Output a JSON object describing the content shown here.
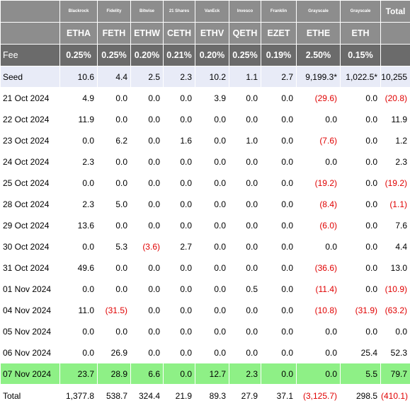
{
  "providers": [
    "Blackrock",
    "Fidelity",
    "Bitwise",
    "21 Shares",
    "VanEck",
    "Invesco",
    "Franklin",
    "Grayscale",
    "Grayscale"
  ],
  "total_header": "Total",
  "tickers": [
    "ETHA",
    "FETH",
    "ETHW",
    "CETH",
    "ETHV",
    "QETH",
    "EZET",
    "ETHE",
    "ETH"
  ],
  "fee_label": "Fee",
  "fees": [
    "0.25%",
    "0.25%",
    "0.20%",
    "0.21%",
    "0.20%",
    "0.25%",
    "0.19%",
    "2.50%",
    "0.15%"
  ],
  "rows": [
    {
      "label": "Seed",
      "values": [
        "10.6",
        "4.4",
        "2.5",
        "2.3",
        "10.2",
        "1.1",
        "2.7",
        "9,199.3*",
        "1,022.5*"
      ],
      "total": "10,255"
    },
    {
      "label": "21 Oct 2024",
      "values": [
        "4.9",
        "0.0",
        "0.0",
        "0.0",
        "3.9",
        "0.0",
        "0.0",
        "(29.6)",
        "0.0"
      ],
      "total": "(20.8)"
    },
    {
      "label": "22 Oct 2024",
      "values": [
        "11.9",
        "0.0",
        "0.0",
        "0.0",
        "0.0",
        "0.0",
        "0.0",
        "0.0",
        "0.0"
      ],
      "total": "11.9"
    },
    {
      "label": "23 Oct 2024",
      "values": [
        "0.0",
        "6.2",
        "0.0",
        "1.6",
        "0.0",
        "1.0",
        "0.0",
        "(7.6)",
        "0.0"
      ],
      "total": "1.2"
    },
    {
      "label": "24 Oct 2024",
      "values": [
        "2.3",
        "0.0",
        "0.0",
        "0.0",
        "0.0",
        "0.0",
        "0.0",
        "0.0",
        "0.0"
      ],
      "total": "2.3"
    },
    {
      "label": "25 Oct 2024",
      "values": [
        "0.0",
        "0.0",
        "0.0",
        "0.0",
        "0.0",
        "0.0",
        "0.0",
        "(19.2)",
        "0.0"
      ],
      "total": "(19.2)"
    },
    {
      "label": "28 Oct 2024",
      "values": [
        "2.3",
        "5.0",
        "0.0",
        "0.0",
        "0.0",
        "0.0",
        "0.0",
        "(8.4)",
        "0.0"
      ],
      "total": "(1.1)"
    },
    {
      "label": "29 Oct 2024",
      "values": [
        "13.6",
        "0.0",
        "0.0",
        "0.0",
        "0.0",
        "0.0",
        "0.0",
        "(6.0)",
        "0.0"
      ],
      "total": "7.6"
    },
    {
      "label": "30 Oct 2024",
      "values": [
        "0.0",
        "5.3",
        "(3.6)",
        "2.7",
        "0.0",
        "0.0",
        "0.0",
        "0.0",
        "0.0"
      ],
      "total": "4.4"
    },
    {
      "label": "31 Oct 2024",
      "values": [
        "49.6",
        "0.0",
        "0.0",
        "0.0",
        "0.0",
        "0.0",
        "0.0",
        "(36.6)",
        "0.0"
      ],
      "total": "13.0"
    },
    {
      "label": "01 Nov 2024",
      "values": [
        "0.0",
        "0.0",
        "0.0",
        "0.0",
        "0.0",
        "0.5",
        "0.0",
        "(11.4)",
        "0.0"
      ],
      "total": "(10.9)"
    },
    {
      "label": "04 Nov 2024",
      "values": [
        "11.0",
        "(31.5)",
        "0.0",
        "0.0",
        "0.0",
        "0.0",
        "0.0",
        "(10.8)",
        "(31.9)"
      ],
      "total": "(63.2)"
    },
    {
      "label": "05 Nov 2024",
      "values": [
        "0.0",
        "0.0",
        "0.0",
        "0.0",
        "0.0",
        "0.0",
        "0.0",
        "0.0",
        "0.0"
      ],
      "total": "0.0"
    },
    {
      "label": "06 Nov 2024",
      "values": [
        "0.0",
        "26.9",
        "0.0",
        "0.0",
        "0.0",
        "0.0",
        "0.0",
        "0.0",
        "25.4"
      ],
      "total": "52.3"
    },
    {
      "label": "07 Nov 2024",
      "values": [
        "23.7",
        "28.9",
        "6.6",
        "0.0",
        "12.7",
        "2.3",
        "0.0",
        "0.0",
        "5.5"
      ],
      "total": "79.7"
    }
  ],
  "total_row": {
    "label": "Total",
    "values": [
      "1,377.8",
      "538.7",
      "324.4",
      "21.9",
      "89.3",
      "27.9",
      "37.1",
      "(3,125.7)",
      "298.5"
    ],
    "total": "(410.1)"
  },
  "colors": {
    "header_bg": "#8d8d8d",
    "fee_bg": "#6b6b6b",
    "seed_bg": "#e8ebf7",
    "highlight_bg": "#8ef086",
    "negative": "#e00000"
  }
}
